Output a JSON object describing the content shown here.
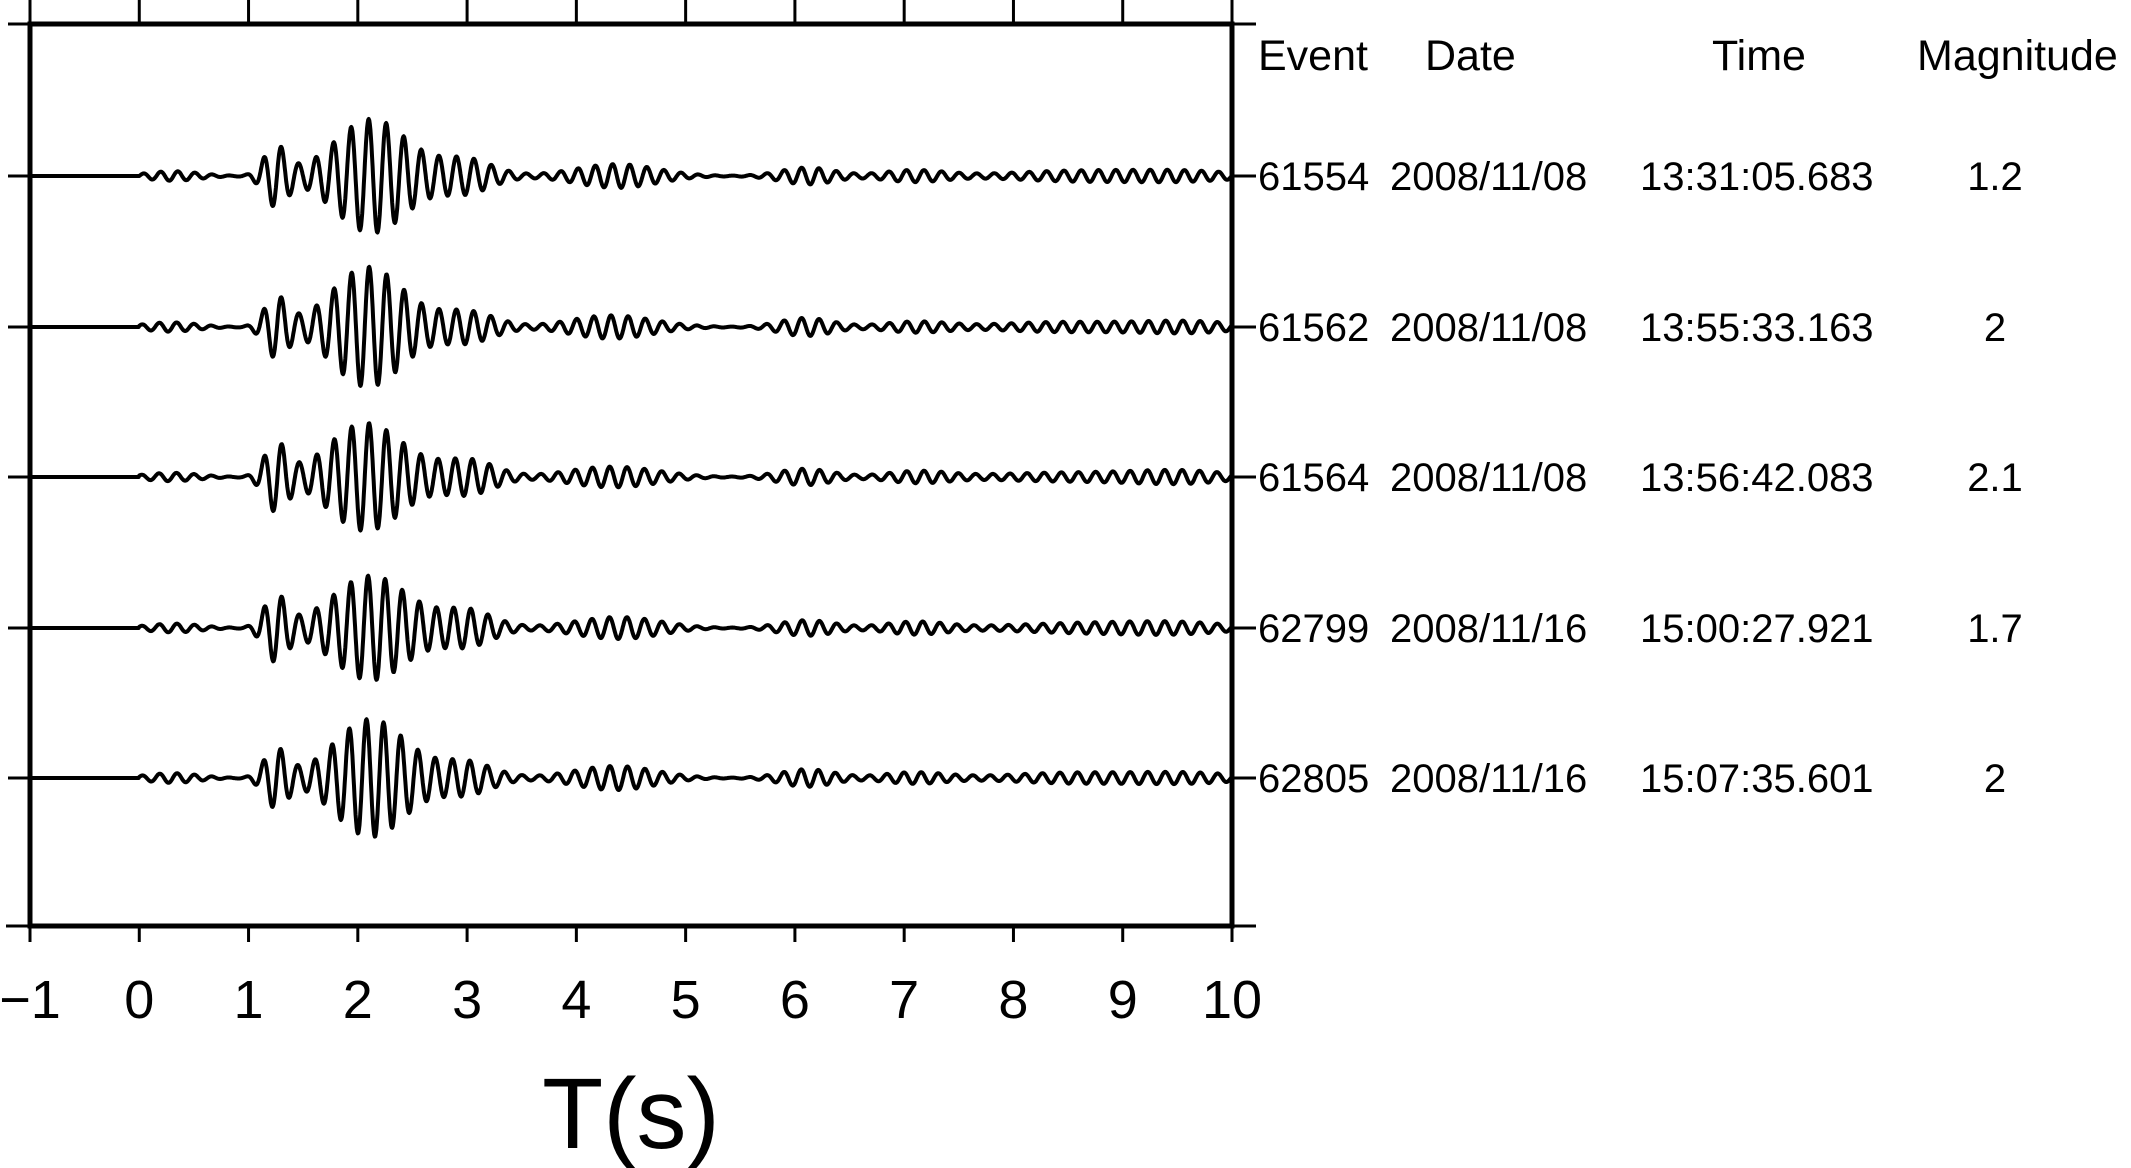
{
  "chart_data": {
    "type": "line",
    "title": "",
    "xlabel": "T(s)",
    "ylabel": "",
    "xlim": [
      -1,
      10
    ],
    "xticks": [
      -1,
      0,
      1,
      2,
      3,
      4,
      5,
      6,
      7,
      8,
      9,
      10
    ],
    "xtick_labels": [
      "−1",
      "0",
      "1",
      "2",
      "3",
      "4",
      "5",
      "6",
      "7",
      "8",
      "9",
      "10"
    ],
    "grid": false,
    "legend": "none",
    "trace_color": "#000000",
    "table_columns": [
      "Event",
      "Date",
      "Time",
      "Magnitude"
    ],
    "series": [
      {
        "event": "61554",
        "date": "2008/11/08",
        "time": "13:31:05.683",
        "magnitude": "1.2"
      },
      {
        "event": "61562",
        "date": "2008/11/08",
        "time": "13:55:33.163",
        "magnitude": "2"
      },
      {
        "event": "61564",
        "date": "2008/11/08",
        "time": "13:56:42.083",
        "magnitude": "2.1"
      },
      {
        "event": "62799",
        "date": "2008/11/16",
        "time": "15:00:27.921",
        "magnitude": "1.7"
      },
      {
        "event": "62805",
        "date": "2008/11/16",
        "time": "15:07:35.601",
        "magnitude": "2"
      }
    ]
  }
}
